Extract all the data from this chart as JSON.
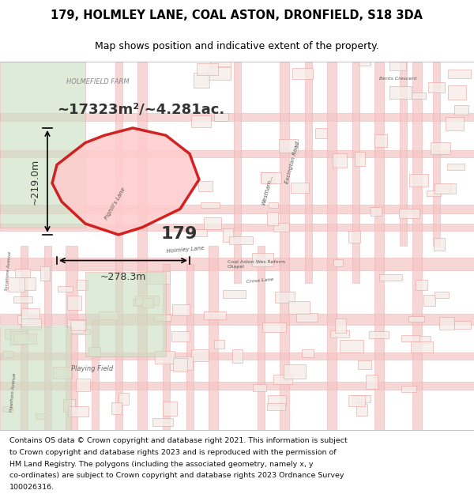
{
  "title_line1": "179, HOLMLEY LANE, COAL ASTON, DRONFIELD, S18 3DA",
  "title_line2": "Map shows position and indicative extent of the property.",
  "footer_lines": [
    "Contains OS data © Crown copyright and database right 2021. This information is subject",
    "to Crown copyright and database rights 2023 and is reproduced with the permission of",
    "HM Land Registry. The polygons (including the associated geometry, namely x, y",
    "co-ordinates) are subject to Crown copyright and database rights 2023 Ordnance Survey",
    "100026316."
  ],
  "area_text": "~17323m²/~4.281ac.",
  "label_179": "179",
  "dim_horiz": "~278.3m",
  "dim_vert": "~219.0m",
  "map_bg": "#e8e4dd",
  "road_color": "#e8a0a0",
  "road_fill": "#f5c5c5",
  "highlight_color": "#cc0000",
  "highlight_fill": "#ffcccc",
  "green_fill": "#c8dfc0",
  "title_bg": "#ffffff",
  "footer_bg": "#ffffff"
}
